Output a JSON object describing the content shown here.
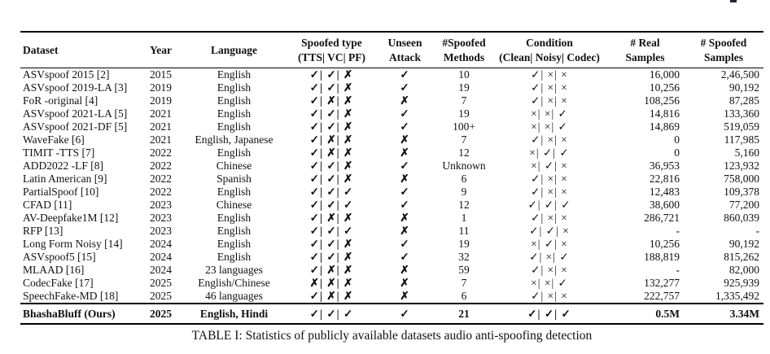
{
  "table": {
    "caption": "TABLE I: Statistics of publicly available datasets audio anti-spoofing detection",
    "headers": [
      {
        "line1": "Dataset",
        "line2": ""
      },
      {
        "line1": "Year",
        "line2": ""
      },
      {
        "line1": "Language",
        "line2": ""
      },
      {
        "line1": "Spoofed type",
        "line2": "(TTS| VC| PF)"
      },
      {
        "line1": "Unseen",
        "line2": "Attack"
      },
      {
        "line1": "#Spoofed",
        "line2": "Methods"
      },
      {
        "line1": "Condition",
        "line2": "(Clean| Noisy| Codec)"
      },
      {
        "line1": "# Real",
        "line2": "Samples"
      },
      {
        "line1": "# Spoofed",
        "line2": "Samples"
      }
    ],
    "symbols": {
      "check": "✓",
      "cross_ballot": "✗",
      "cross_times": "×"
    },
    "rows": [
      {
        "dataset": "ASVspoof 2015 [2]",
        "year": "2015",
        "language": "English",
        "spoofed_type": "✓| ✓| ✗",
        "unseen": "✓",
        "methods": "10",
        "condition": "✓| ×| ×",
        "real": "16,000",
        "spoofed": "2,46,500"
      },
      {
        "dataset": "ASVspoof 2019-LA [3]",
        "year": "2019",
        "language": "English",
        "spoofed_type": "✓| ✓| ✗",
        "unseen": "✓",
        "methods": "19",
        "condition": "✓| ×| ×",
        "real": "10,256",
        "spoofed": "90,192"
      },
      {
        "dataset": "FoR -original [4]",
        "year": "2019",
        "language": "English",
        "spoofed_type": "✓| ✗| ✗",
        "unseen": "✗",
        "methods": "7",
        "condition": "✓| ×| ×",
        "real": "108,256",
        "spoofed": "87,285"
      },
      {
        "dataset": "ASVspoof 2021-LA [5]",
        "year": "2021",
        "language": "English",
        "spoofed_type": "✓| ✓| ✗",
        "unseen": "✓",
        "methods": "19",
        "condition": "×| ×| ✓",
        "real": "14,816",
        "spoofed": "133,360"
      },
      {
        "dataset": "ASVspoof 2021-DF [5]",
        "year": "2021",
        "language": "English",
        "spoofed_type": "✓| ✓| ✗",
        "unseen": "✓",
        "methods": "100+",
        "condition": "×| ×| ✓",
        "real": "14,869",
        "spoofed": "519,059"
      },
      {
        "dataset": "WaveFake [6]",
        "year": "2021",
        "language": "English, Japanese",
        "spoofed_type": "✓| ✗| ✗",
        "unseen": "✗",
        "methods": "7",
        "condition": "✓| ×| ×",
        "real": "0",
        "spoofed": "117,985"
      },
      {
        "dataset": "TIMIT -TTS [7]",
        "year": "2022",
        "language": "English",
        "spoofed_type": "✓| ✗| ✗",
        "unseen": "✗",
        "methods": "12",
        "condition": "×| ✓| ✓",
        "real": "0",
        "spoofed": "5,160"
      },
      {
        "dataset": "ADD2022 -LF [8]",
        "year": "2022",
        "language": "Chinese",
        "spoofed_type": "✓| ✓| ✗",
        "unseen": "✓",
        "methods": "Unknown",
        "condition": "×| ✓| ×",
        "real": "36,953",
        "spoofed": "123,932"
      },
      {
        "dataset": "Latin American [9]",
        "year": "2022",
        "language": "Spanish",
        "spoofed_type": "✓| ✓| ✗",
        "unseen": "✗",
        "methods": "6",
        "condition": "✓| ×| ×",
        "real": "22,816",
        "spoofed": "758,000"
      },
      {
        "dataset": "PartialSpoof [10]",
        "year": "2022",
        "language": "English",
        "spoofed_type": "✓| ✓| ✓",
        "unseen": "✓",
        "methods": "9",
        "condition": "✓| ×| ×",
        "real": "12,483",
        "spoofed": "109,378"
      },
      {
        "dataset": "CFAD [11]",
        "year": "2023",
        "language": "Chinese",
        "spoofed_type": "✓| ✓| ✓",
        "unseen": "✓",
        "methods": "12",
        "condition": "✓| ✓| ✓",
        "real": "38,600",
        "spoofed": "77,200"
      },
      {
        "dataset": "AV-Deepfake1M [12]",
        "year": "2023",
        "language": "English",
        "spoofed_type": "✓| ✗| ✗",
        "unseen": "✗",
        "methods": "1",
        "condition": "✓| ×| ×",
        "real": "286,721",
        "spoofed": "860,039"
      },
      {
        "dataset": "RFP [13]",
        "year": "2023",
        "language": "English",
        "spoofed_type": "✓| ✓| ✓",
        "unseen": "✗",
        "methods": "11",
        "condition": "✓| ✓| ×",
        "real": "-",
        "spoofed": "-"
      },
      {
        "dataset": "Long Form Noisy [14]",
        "year": "2024",
        "language": "English",
        "spoofed_type": "✓| ✓| ✗",
        "unseen": "✓",
        "methods": "19",
        "condition": "×| ✓| ×",
        "real": "10,256",
        "spoofed": "90,192"
      },
      {
        "dataset": "ASVspoof5 [15]",
        "year": "2024",
        "language": "English",
        "spoofed_type": "✓| ✓| ✗",
        "unseen": "✓",
        "methods": "32",
        "condition": "✓| ×| ✓",
        "real": "188,819",
        "spoofed": "815,262"
      },
      {
        "dataset": "MLAAD [16]",
        "year": "2024",
        "language": "23 languages",
        "spoofed_type": "✓| ✗| ✗",
        "unseen": "✗",
        "methods": "59",
        "condition": "✓| ×| ×",
        "real": "-",
        "spoofed": "82,000"
      },
      {
        "dataset": "CodecFake [17]",
        "year": "2025",
        "language": "English/Chinese",
        "spoofed_type": "✗| ✗| ✗",
        "unseen": "✗",
        "methods": "7",
        "condition": "×| ×| ✓",
        "real": "132,277",
        "spoofed": "925,939"
      },
      {
        "dataset": "SpeechFake-MD [18]",
        "year": "2025",
        "language": "46 languages",
        "spoofed_type": "✓| ✗| ✗",
        "unseen": "✗",
        "methods": "6",
        "condition": "✓| ×| ×",
        "real": "222,757",
        "spoofed": "1,335,492"
      },
      {
        "dataset": "BhashaBluff (Ours)",
        "year": "2025",
        "language": "English, Hindi",
        "spoofed_type": "✓| ✓| ✓",
        "unseen": "✓",
        "methods": "21",
        "condition": "✓| ✓| ✓",
        "real": "0.5M",
        "spoofed": "3.34M",
        "bold": true
      }
    ]
  }
}
